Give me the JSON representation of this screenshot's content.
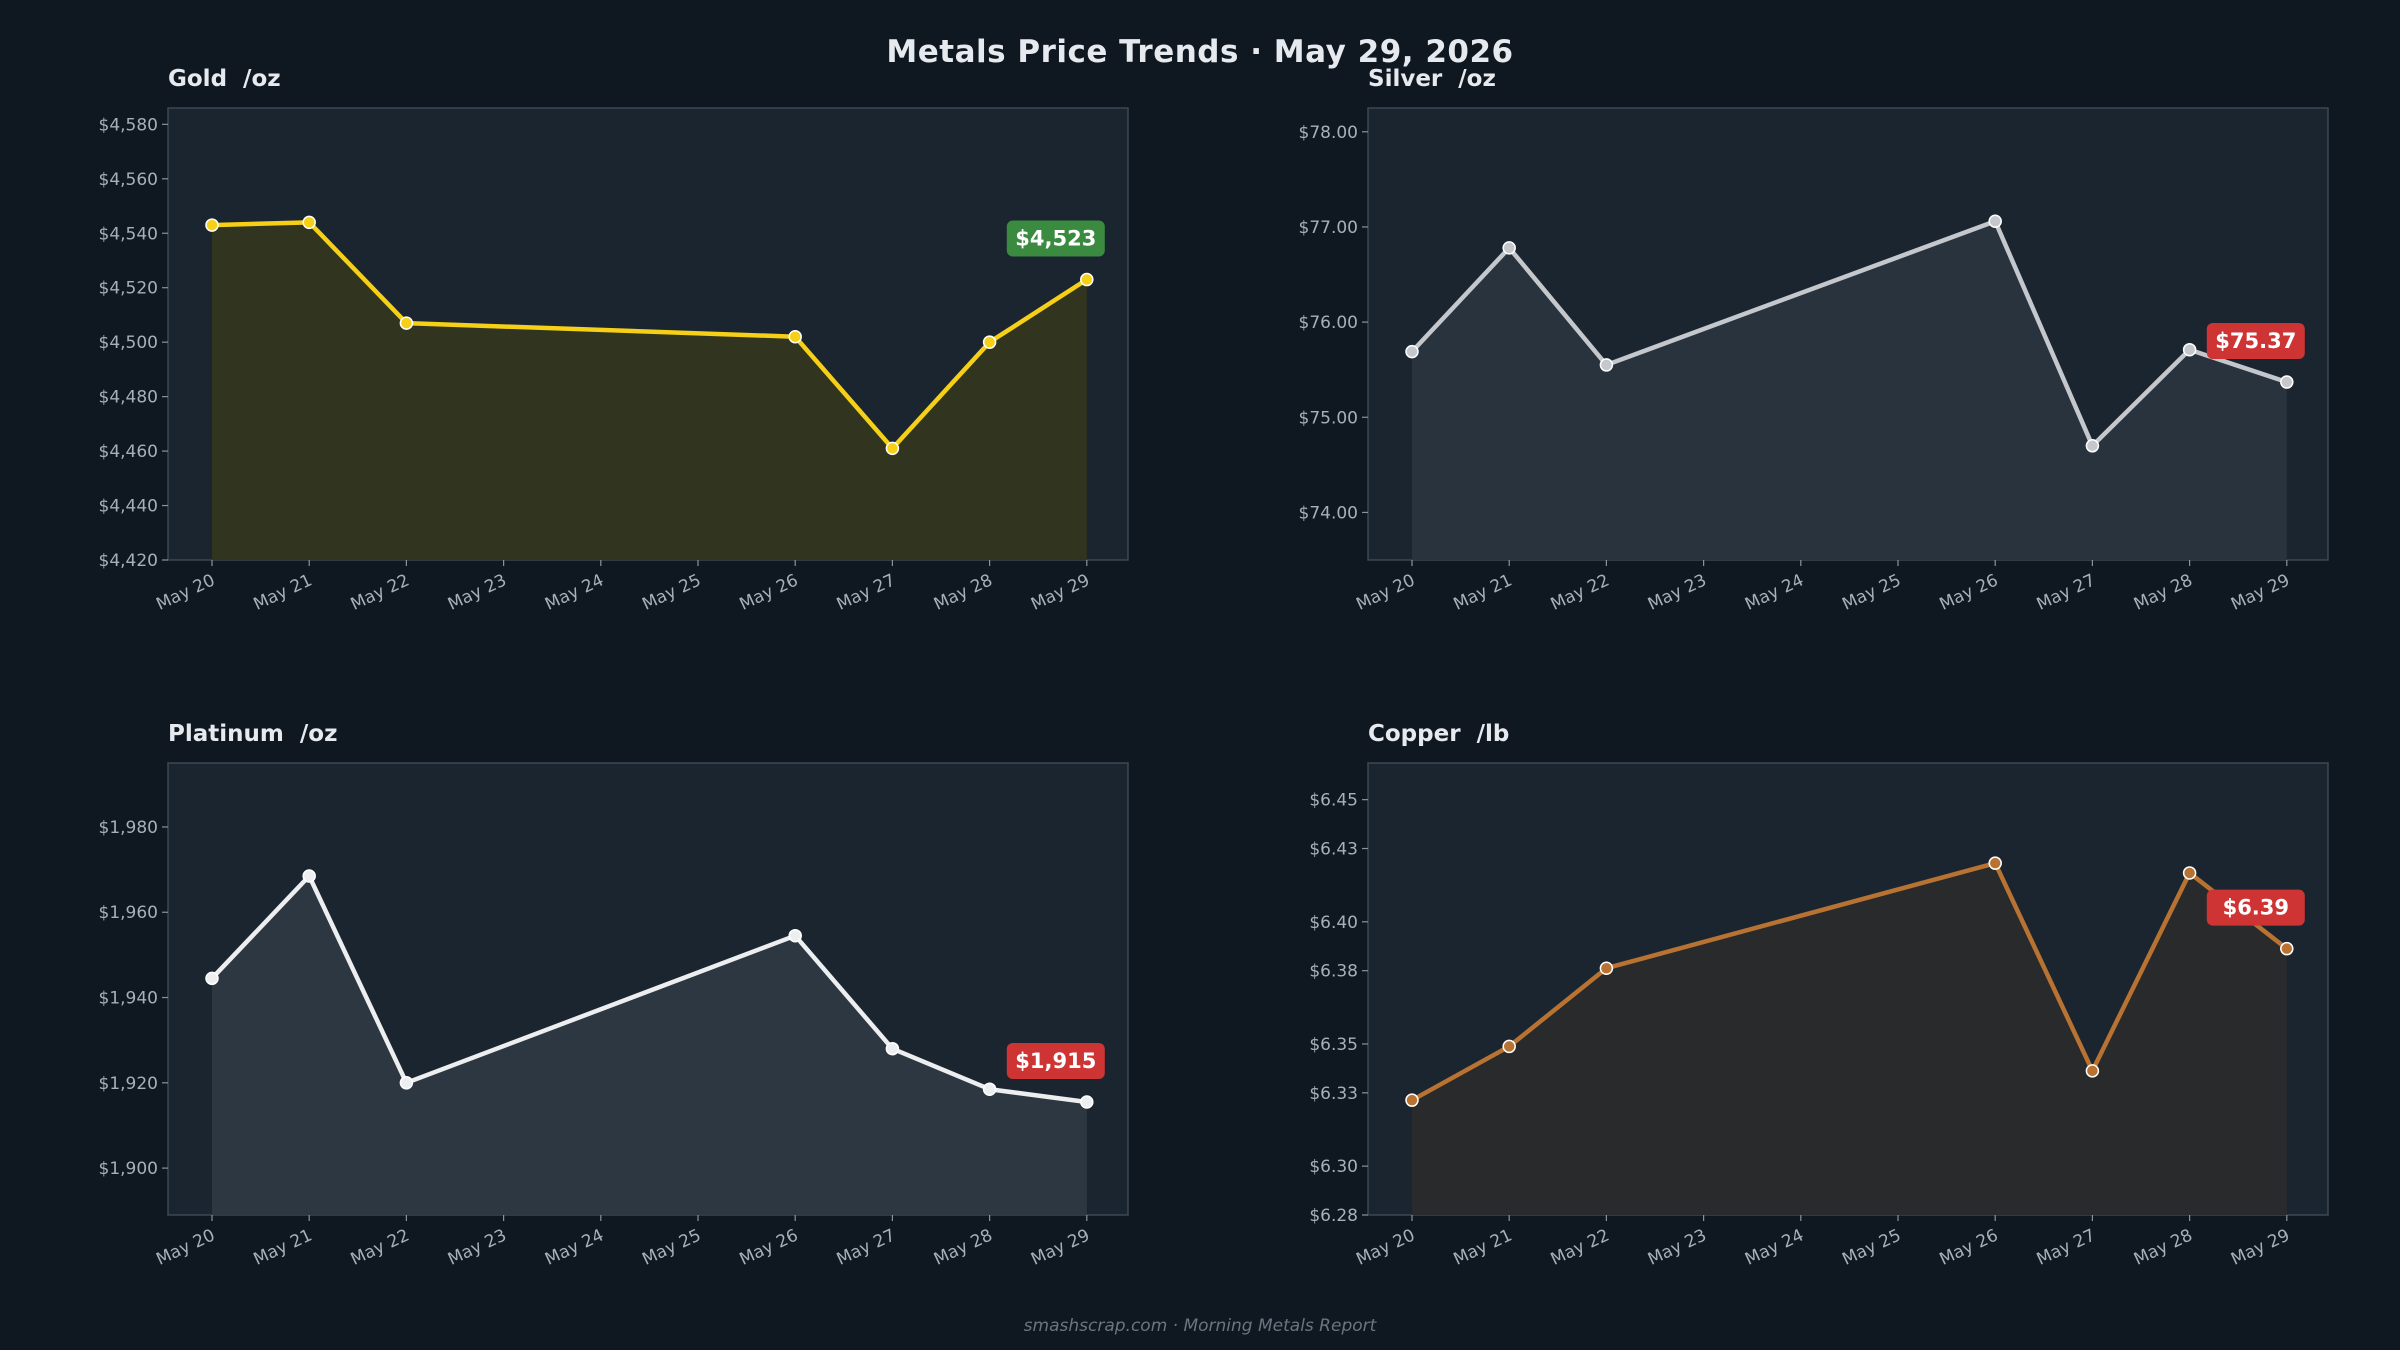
{
  "title": "Metals Price Trends  ·  May 29, 2026",
  "footer": "smashscrap.com  ·  Morning Metals Report",
  "colors": {
    "background": "#0f1720",
    "panel": "#1b2530",
    "up": "#3a8a3f",
    "down": "#cf3434"
  },
  "chart_data": [
    {
      "type": "area",
      "title": "Gold  /oz",
      "color": "#f5d016",
      "fill": "#33351f",
      "x": [
        "May 20",
        "May 21",
        "May 22",
        "May 23",
        "May 24",
        "May 25",
        "May 26",
        "May 27",
        "May 28",
        "May 29"
      ],
      "points": [
        {
          "x": "May 20",
          "y": 4543
        },
        {
          "x": "May 21",
          "y": 4544
        },
        {
          "x": "May 22",
          "y": 4507
        },
        {
          "x": "May 26",
          "y": 4502
        },
        {
          "x": "May 27",
          "y": 4461
        },
        {
          "x": "May 28",
          "y": 4500
        },
        {
          "x": "May 29",
          "y": 4523
        }
      ],
      "ylim": [
        4420,
        4586
      ],
      "yticks": [
        4420,
        4440,
        4460,
        4480,
        4500,
        4520,
        4540,
        4560,
        4580
      ],
      "ytick_labels": [
        "$4,420",
        "$4,440",
        "$4,460",
        "$4,480",
        "$4,500",
        "$4,520",
        "$4,540",
        "$4,560",
        "$4,580"
      ],
      "badge": {
        "text": "$4,523",
        "direction": "up"
      }
    },
    {
      "type": "area",
      "title": "Silver  /oz",
      "color": "#c4c8cc",
      "fill": "#2a343f",
      "x": [
        "May 20",
        "May 21",
        "May 22",
        "May 23",
        "May 24",
        "May 25",
        "May 26",
        "May 27",
        "May 28",
        "May 29"
      ],
      "points": [
        {
          "x": "May 20",
          "y": 75.69
        },
        {
          "x": "May 21",
          "y": 76.78
        },
        {
          "x": "May 22",
          "y": 75.55
        },
        {
          "x": "May 26",
          "y": 77.06
        },
        {
          "x": "May 27",
          "y": 74.7
        },
        {
          "x": "May 28",
          "y": 75.71
        },
        {
          "x": "May 29",
          "y": 75.37
        }
      ],
      "ylim": [
        73.5,
        78.25
      ],
      "yticks": [
        74,
        75,
        76,
        77,
        78
      ],
      "ytick_labels": [
        "$74.00",
        "$75.00",
        "$76.00",
        "$77.00",
        "$78.00"
      ],
      "badge": {
        "text": "$75.37",
        "direction": "down"
      }
    },
    {
      "type": "area",
      "title": "Platinum  /oz",
      "color": "#eceef0",
      "fill": "#2e3842",
      "x": [
        "May 20",
        "May 21",
        "May 22",
        "May 23",
        "May 24",
        "May 25",
        "May 26",
        "May 27",
        "May 28",
        "May 29"
      ],
      "points": [
        {
          "x": "May 20",
          "y": 1944.5
        },
        {
          "x": "May 21",
          "y": 1968.5
        },
        {
          "x": "May 22",
          "y": 1920.0
        },
        {
          "x": "May 26",
          "y": 1954.5
        },
        {
          "x": "May 27",
          "y": 1928.0
        },
        {
          "x": "May 28",
          "y": 1918.5
        },
        {
          "x": "May 29",
          "y": 1915.5
        }
      ],
      "ylim": [
        1889,
        1995
      ],
      "yticks": [
        1900,
        1920,
        1940,
        1960,
        1980
      ],
      "ytick_labels": [
        "$1,900",
        "$1,920",
        "$1,940",
        "$1,960",
        "$1,980"
      ],
      "badge": {
        "text": "$1,915",
        "direction": "down"
      }
    },
    {
      "type": "area",
      "title": "Copper  /lb",
      "color": "#b87333",
      "fill": "#2a2a2c",
      "x": [
        "May 20",
        "May 21",
        "May 22",
        "May 23",
        "May 24",
        "May 25",
        "May 26",
        "May 27",
        "May 28",
        "May 29"
      ],
      "points": [
        {
          "x": "May 20",
          "y": 6.327
        },
        {
          "x": "May 21",
          "y": 6.349
        },
        {
          "x": "May 22",
          "y": 6.381
        },
        {
          "x": "May 26",
          "y": 6.424
        },
        {
          "x": "May 27",
          "y": 6.339
        },
        {
          "x": "May 28",
          "y": 6.42
        },
        {
          "x": "May 29",
          "y": 6.389
        }
      ],
      "ylim": [
        6.28,
        6.465
      ],
      "yticks": [
        6.28,
        6.3,
        6.33,
        6.35,
        6.38,
        6.4,
        6.43,
        6.45
      ],
      "ytick_labels": [
        "$6.28",
        "$6.30",
        "$6.33",
        "$6.35",
        "$6.38",
        "$6.40",
        "$6.43",
        "$6.45"
      ],
      "badge": {
        "text": "$6.39",
        "direction": "down"
      }
    }
  ]
}
